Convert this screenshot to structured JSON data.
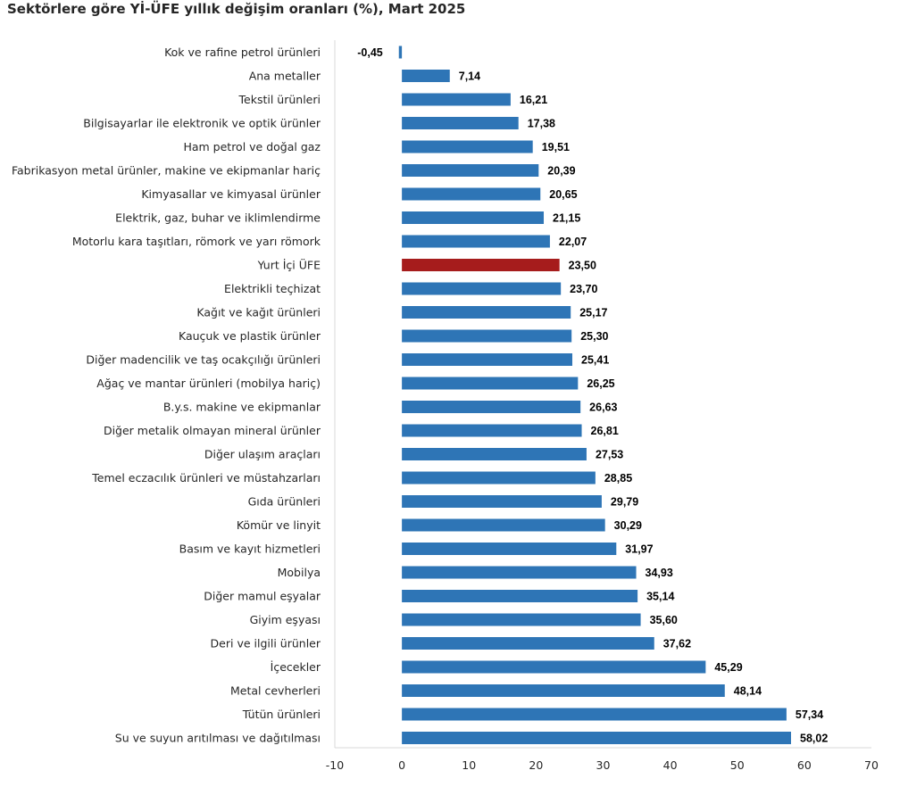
{
  "chart_data": {
    "type": "bar",
    "orientation": "horizontal",
    "title": "Sektörlere göre Yİ-ÜFE yıllık değişim oranları (%), Mart 2025",
    "xlabel": "",
    "ylabel": "",
    "xlim": [
      -10,
      70
    ],
    "x_ticks": [
      "-10",
      "0",
      "10",
      "20",
      "30",
      "40",
      "50",
      "60",
      "70"
    ],
    "grid": false,
    "legend": "none",
    "colors": {
      "bar": "#2e75b6",
      "highlight": "#a61c1c",
      "axis": "#d9d9d9"
    },
    "categories": [
      "Kok ve rafine petrol ürünleri",
      "Ana metaller",
      "Tekstil ürünleri",
      "Bilgisayarlar ile elektronik ve optik ürünler",
      "Ham petrol ve doğal gaz",
      "Fabrikasyon metal ürünler, makine ve ekipmanlar hariç",
      "Kimyasallar ve kimyasal ürünler",
      "Elektrik, gaz, buhar ve iklimlendirme",
      "Motorlu kara taşıtları, römork ve yarı römork",
      "Yurt İçi ÜFE",
      "Elektrikli teçhizat",
      "Kağıt ve kağıt ürünleri",
      "Kauçuk ve plastik ürünler",
      "Diğer madencilik ve taş ocakçılığı ürünleri",
      "Ağaç ve mantar ürünleri (mobilya hariç)",
      "B.y.s. makine ve ekipmanlar",
      "Diğer metalik olmayan mineral ürünler",
      "Diğer ulaşım araçları",
      "Temel eczacılık ürünleri ve müstahzarları",
      "Gıda ürünleri",
      "Kömür ve linyit",
      "Basım ve kayıt hizmetleri",
      "Mobilya",
      "Diğer mamul eşyalar",
      "Giyim eşyası",
      "Deri ve ilgili ürünler",
      "İçecekler",
      "Metal cevherleri",
      "Tütün ürünleri",
      "Su ve suyun arıtılması ve dağıtılması"
    ],
    "values": [
      -0.45,
      7.14,
      16.21,
      17.38,
      19.51,
      20.39,
      20.65,
      21.15,
      22.07,
      23.5,
      23.7,
      25.17,
      25.3,
      25.41,
      26.25,
      26.63,
      26.81,
      27.53,
      28.85,
      29.79,
      30.29,
      31.97,
      34.93,
      35.14,
      35.6,
      37.62,
      45.29,
      48.14,
      57.34,
      58.02
    ],
    "value_labels": [
      "-0,45",
      "7,14",
      "16,21",
      "17,38",
      "19,51",
      "20,39",
      "20,65",
      "21,15",
      "22,07",
      "23,50",
      "23,70",
      "25,17",
      "25,30",
      "25,41",
      "26,25",
      "26,63",
      "26,81",
      "27,53",
      "28,85",
      "29,79",
      "30,29",
      "31,97",
      "34,93",
      "35,14",
      "35,60",
      "37,62",
      "45,29",
      "48,14",
      "57,34",
      "58,02"
    ],
    "highlight_category": "Yurt İçi ÜFE"
  }
}
